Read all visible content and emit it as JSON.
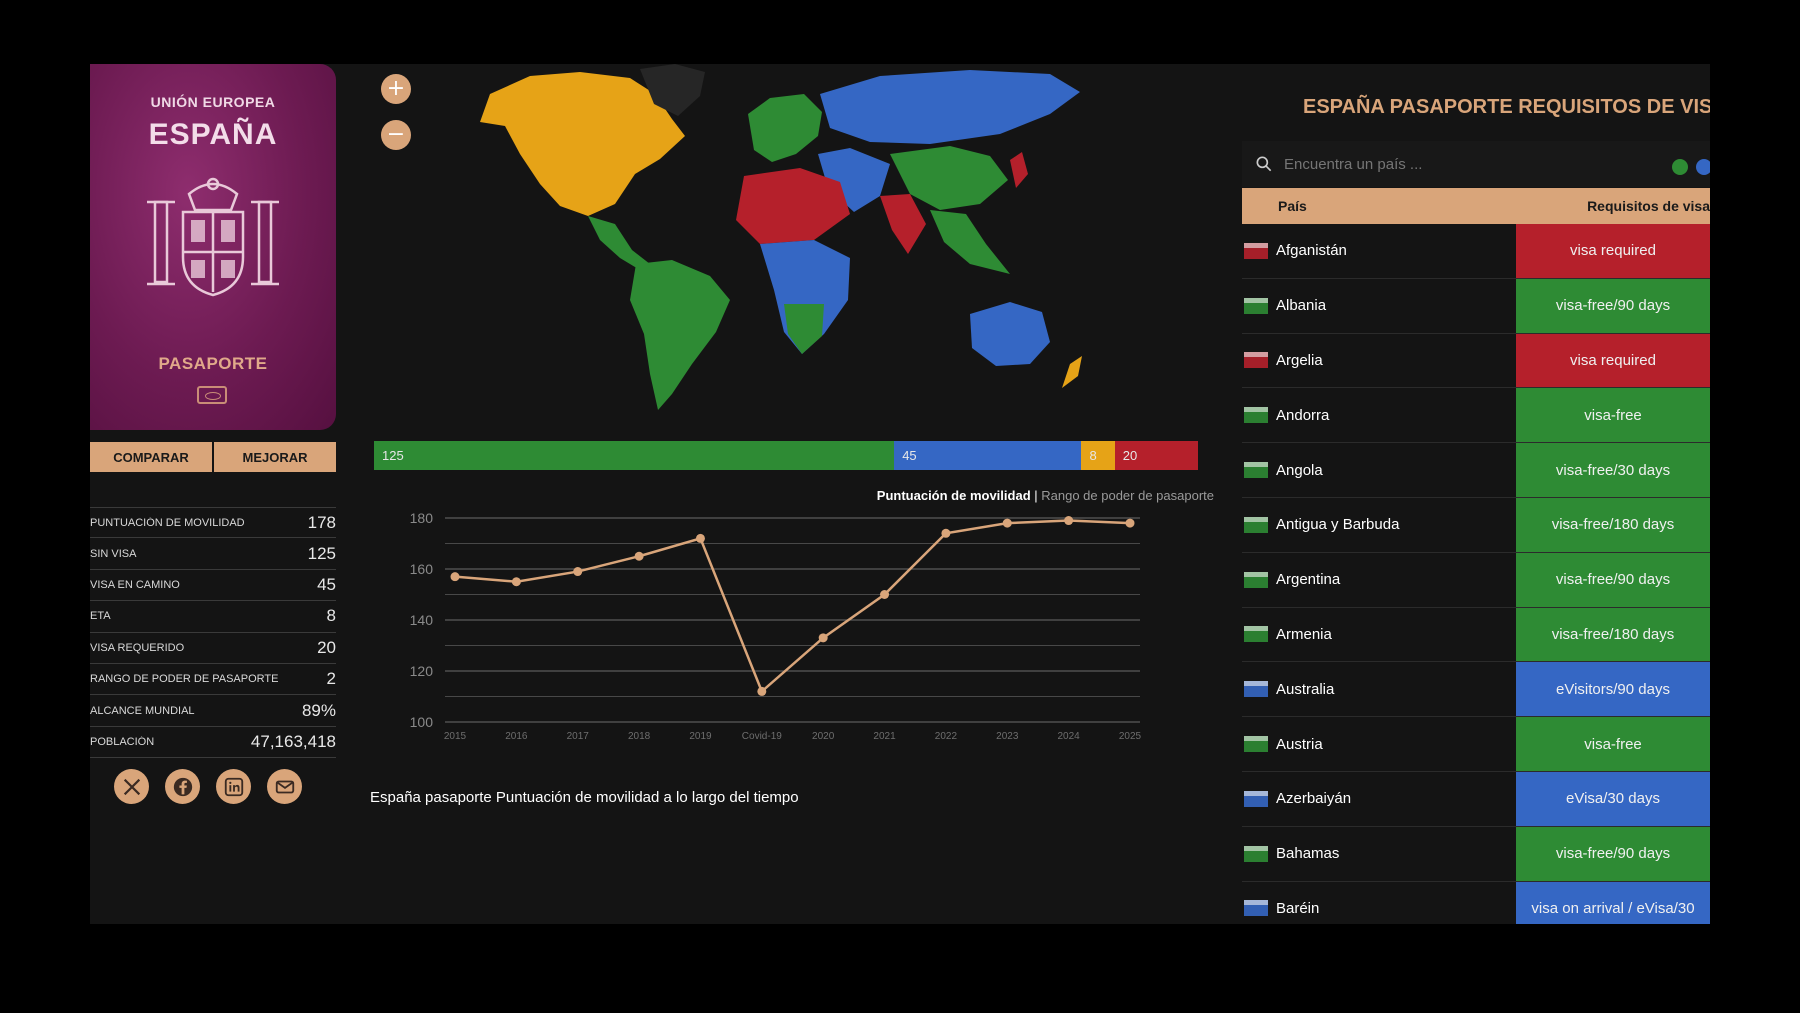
{
  "passport": {
    "union": "UNIÓN EUROPEA",
    "country": "ESPAÑA",
    "title": "PASAPORTE"
  },
  "actions": {
    "compare": "COMPARAR",
    "improve": "MEJORAR"
  },
  "stats": [
    {
      "label": "PUNTUACIÓN DE MOVILIDAD",
      "value": "178"
    },
    {
      "label": "SIN VISA",
      "value": "125"
    },
    {
      "label": "VISA EN CAMINO",
      "value": "45"
    },
    {
      "label": "ETA",
      "value": "8"
    },
    {
      "label": "VISA REQUERIDO",
      "value": "20"
    },
    {
      "label": "RANGO DE PODER DE PASAPORTE",
      "value": "2"
    },
    {
      "label": "ALCANCE MUNDIAL",
      "value": "89%"
    },
    {
      "label": "POBLACIÓN",
      "value": "47,163,418"
    }
  ],
  "social": [
    "x-icon",
    "facebook-icon",
    "linkedin-icon",
    "mail-icon"
  ],
  "map": {
    "zoom_in": "+",
    "zoom_out": "−"
  },
  "distribution": [
    {
      "label": "125",
      "value": 125,
      "color": "#2e8b34"
    },
    {
      "label": "45",
      "value": 45,
      "color": "#3567c4"
    },
    {
      "label": "8",
      "value": 8,
      "color": "#e6a317"
    },
    {
      "label": "20",
      "value": 20,
      "color": "#b5202b"
    }
  ],
  "chart_toggle": {
    "active": "Puntuación de movilidad",
    "separator": " | ",
    "inactive": "Rango de poder de pasaporte"
  },
  "chart_title": "España pasaporte Puntuación de movilidad a lo largo del tiempo",
  "chart_data": {
    "type": "line",
    "categories": [
      "2015",
      "2016",
      "2017",
      "2018",
      "2019",
      "Covid-19",
      "2020",
      "2021",
      "2022",
      "2023",
      "2024",
      "2025"
    ],
    "series": [
      {
        "values": [
          157,
          155,
          159,
          165,
          172,
          112,
          133,
          150,
          174,
          178,
          179,
          178
        ]
      }
    ],
    "ylim": [
      100,
      180
    ],
    "yticks": [
      100,
      120,
      140,
      160,
      180
    ],
    "grid": true,
    "line_color": "#d9a57a"
  },
  "visa_panel": {
    "title": "ESPAÑA PASAPORTE REQUISITOS DE VISA",
    "search_placeholder": "Encuentra un país ...",
    "col_country": "País",
    "col_requirement": "Requisitos de visa",
    "rows": [
      {
        "country": "Afganistán",
        "requirement": "visa required",
        "color": "#b5202b"
      },
      {
        "country": "Albania",
        "requirement": "visa-free/90 days",
        "color": "#2e8b34"
      },
      {
        "country": "Argelia",
        "requirement": "visa required",
        "color": "#b5202b"
      },
      {
        "country": "Andorra",
        "requirement": "visa-free",
        "color": "#2e8b34"
      },
      {
        "country": "Angola",
        "requirement": "visa-free/30 days",
        "color": "#2e8b34"
      },
      {
        "country": "Antigua y Barbuda",
        "requirement": "visa-free/180 days",
        "color": "#2e8b34"
      },
      {
        "country": "Argentina",
        "requirement": "visa-free/90 days",
        "color": "#2e8b34"
      },
      {
        "country": "Armenia",
        "requirement": "visa-free/180 days",
        "color": "#2e8b34"
      },
      {
        "country": "Australia",
        "requirement": "eVisitors/90 days",
        "color": "#3567c4"
      },
      {
        "country": "Austria",
        "requirement": "visa-free",
        "color": "#2e8b34"
      },
      {
        "country": "Azerbaiyán",
        "requirement": "eVisa/30 days",
        "color": "#3567c4"
      },
      {
        "country": "Bahamas",
        "requirement": "visa-free/90 days",
        "color": "#2e8b34"
      },
      {
        "country": "Baréin",
        "requirement": "visa on arrival / eVisa/30",
        "color": "#3567c4"
      }
    ]
  },
  "colors": {
    "accent": "#d9a57a",
    "visa_free": "#2e8b34",
    "visa_on_arrival": "#3567c4",
    "eta": "#e6a317",
    "visa_required": "#b5202b"
  }
}
